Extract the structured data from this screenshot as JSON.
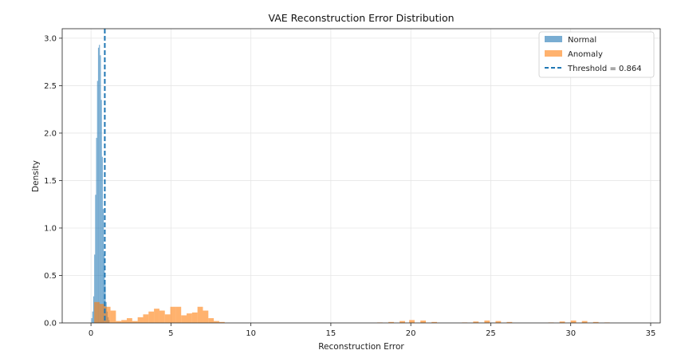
{
  "chart_data": {
    "type": "histogram",
    "title": "VAE Reconstruction Error Distribution",
    "xlabel": "Reconstruction Error",
    "ylabel": "Density",
    "xlim": [
      -1.8,
      35.6
    ],
    "ylim": [
      0,
      3.1
    ],
    "xticks": [
      0,
      5,
      10,
      15,
      20,
      25,
      30,
      35
    ],
    "yticks": [
      0.0,
      0.5,
      1.0,
      1.5,
      2.0,
      2.5,
      3.0
    ],
    "grid": true,
    "legend_position": "top-right",
    "colors": {
      "normal": "#1f77b4",
      "anomaly": "#ff7f0e",
      "threshold": "#1f77b4"
    },
    "series": [
      {
        "name": "Normal",
        "bin_width": 0.06,
        "bin_start": 0.02,
        "values": [
          0.05,
          0.12,
          0.28,
          0.72,
          1.35,
          1.95,
          2.55,
          2.9,
          2.93,
          2.82,
          2.35,
          1.75,
          1.2,
          0.72,
          0.4,
          0.22,
          0.12,
          0.06,
          0.03
        ]
      },
      {
        "name": "Anomaly",
        "bin_width": 0.34,
        "bins": [
          [
            0.2,
            0.22
          ],
          [
            0.54,
            0.2
          ],
          [
            0.88,
            0.17
          ],
          [
            1.22,
            0.13
          ],
          [
            1.56,
            0.02
          ],
          [
            1.9,
            0.03
          ],
          [
            2.24,
            0.05
          ],
          [
            2.58,
            0.02
          ],
          [
            2.92,
            0.06
          ],
          [
            3.26,
            0.09
          ],
          [
            3.6,
            0.12
          ],
          [
            3.94,
            0.15
          ],
          [
            4.28,
            0.13
          ],
          [
            4.62,
            0.09
          ],
          [
            4.96,
            0.17
          ],
          [
            5.3,
            0.17
          ],
          [
            5.64,
            0.08
          ],
          [
            5.98,
            0.1
          ],
          [
            6.32,
            0.11
          ],
          [
            6.66,
            0.17
          ],
          [
            7.0,
            0.13
          ],
          [
            7.34,
            0.05
          ],
          [
            7.68,
            0.02
          ],
          [
            8.02,
            0.01
          ],
          [
            17.9,
            0.005
          ],
          [
            18.6,
            0.01
          ],
          [
            19.3,
            0.02
          ],
          [
            19.9,
            0.03
          ],
          [
            20.6,
            0.025
          ],
          [
            21.3,
            0.01
          ],
          [
            23.2,
            0.005
          ],
          [
            23.9,
            0.015
          ],
          [
            24.6,
            0.025
          ],
          [
            25.3,
            0.02
          ],
          [
            26.0,
            0.01
          ],
          [
            28.6,
            0.005
          ],
          [
            29.3,
            0.015
          ],
          [
            30.0,
            0.025
          ],
          [
            30.7,
            0.02
          ],
          [
            31.4,
            0.01
          ],
          [
            32.1,
            0.005
          ]
        ]
      }
    ],
    "threshold": {
      "label": "Threshold = 0.864",
      "value": 0.864
    }
  }
}
